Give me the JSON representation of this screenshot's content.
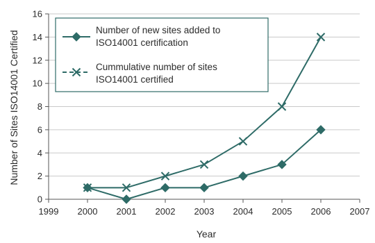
{
  "chart_data": {
    "type": "line",
    "title": "",
    "xlabel": "Year",
    "ylabel": "Number of Sites ISO14001 Certified",
    "xlim": [
      1999,
      2007
    ],
    "ylim": [
      0,
      16
    ],
    "xticks": [
      1999,
      2000,
      2001,
      2002,
      2003,
      2004,
      2005,
      2006,
      2007
    ],
    "yticks": [
      0,
      2,
      4,
      6,
      8,
      10,
      12,
      14,
      16
    ],
    "grid": "horizontal",
    "legend_position": "top-left",
    "series": [
      {
        "name_lines": [
          "Number of new sites added to",
          "ISO14001 certification"
        ],
        "marker": "diamond",
        "color": "#2e6b67",
        "x": [
          2000,
          2001,
          2002,
          2003,
          2004,
          2005,
          2006
        ],
        "y": [
          1,
          0,
          1,
          1,
          2,
          3,
          6
        ]
      },
      {
        "name_lines": [
          "Cummulative number of sites",
          "ISO14001 certified"
        ],
        "marker": "x",
        "color": "#2e6b67",
        "x": [
          2000,
          2001,
          2002,
          2003,
          2004,
          2005,
          2006
        ],
        "y": [
          1,
          1,
          2,
          3,
          5,
          8,
          14
        ]
      }
    ]
  }
}
